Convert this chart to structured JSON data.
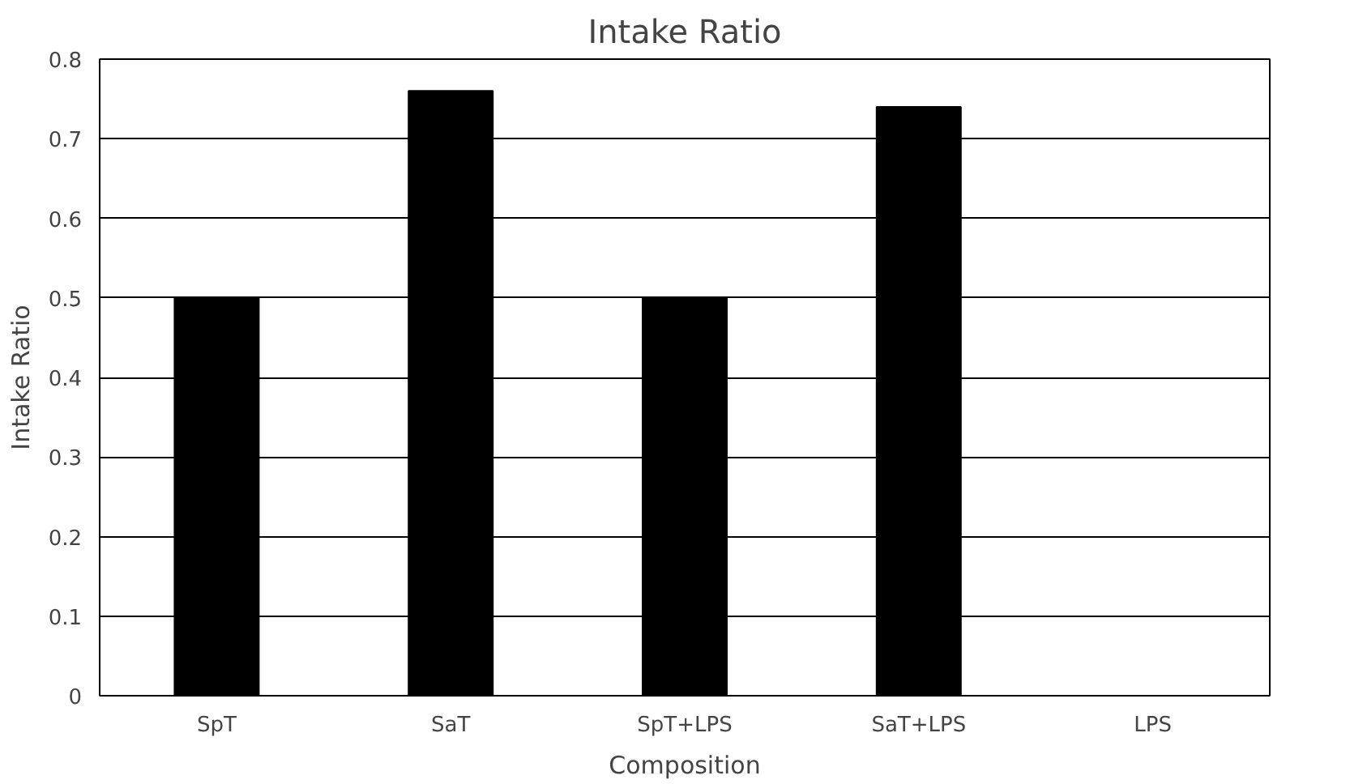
{
  "chart_data": {
    "type": "bar",
    "title": "Intake Ratio",
    "xlabel": "Composition",
    "ylabel": "Intake Ratio",
    "categories": [
      "SpT",
      "SaT",
      "SpT+LPS",
      "SaT+LPS",
      "LPS"
    ],
    "values": [
      0.5,
      0.76,
      0.5,
      0.74,
      0
    ],
    "color": "#000000",
    "ylim": [
      0,
      0.8
    ],
    "yticks": [
      0,
      0.1,
      0.2,
      0.3,
      0.4,
      0.5,
      0.6,
      0.7,
      0.8
    ],
    "grid": "y"
  }
}
